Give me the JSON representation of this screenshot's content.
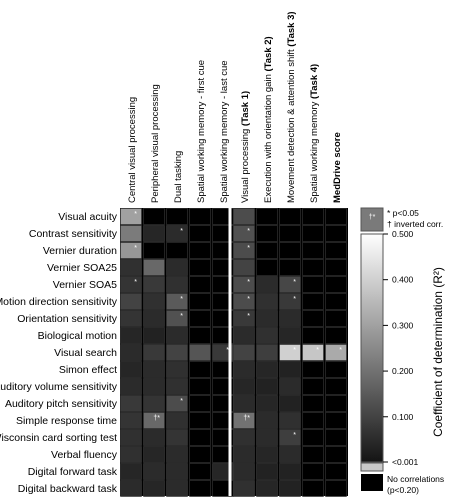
{
  "chart_data": {
    "type": "heatmap",
    "columns": [
      {
        "label": "Central visual processing",
        "bold_part": ""
      },
      {
        "label": "Peripheral visual processing",
        "bold_part": ""
      },
      {
        "label": "Dual tasking",
        "bold_part": ""
      },
      {
        "label": "Spatial working memory - first cue",
        "bold_part": ""
      },
      {
        "label": "Spatial working memory - last cue",
        "bold_part": ""
      },
      {
        "label": "Visual processing ",
        "bold_part": "(Task 1)"
      },
      {
        "label": "Execution with orientation gain ",
        "bold_part": "(Task 2)"
      },
      {
        "label": "Movement detection & attention shift ",
        "bold_part": "(Task 3)"
      },
      {
        "label": "Spatial working memory ",
        "bold_part": "(Task 4)"
      },
      {
        "label": "",
        "bold_part": "MedDrive score"
      }
    ],
    "rows": [
      "Visual acuity",
      "Contrast sensitivity",
      "Vernier duration",
      "Vernier SOA25",
      "Vernier SOA5",
      "Motion direction sensitivity",
      "Orientation sensitivity",
      "Biological motion",
      "Visual search",
      "Simon effect",
      "Auditory volume sensitivity",
      "Auditory pitch sensitivity",
      "Simple response time",
      "Wisconsin card sorting test",
      "Verbal fluency",
      "Digital forward task",
      "Digital backward task"
    ],
    "values": [
      [
        0.3,
        0,
        0,
        0,
        0,
        0.12,
        0,
        0,
        0,
        0
      ],
      [
        0.22,
        0.04,
        0.05,
        0,
        0,
        0.13,
        0,
        0,
        0,
        0
      ],
      [
        0.28,
        0,
        0,
        0,
        0,
        0.12,
        0,
        0,
        0,
        0
      ],
      [
        0.06,
        0.18,
        0.05,
        0,
        0,
        0.1,
        0,
        0,
        0,
        0
      ],
      [
        0.07,
        0.08,
        0.06,
        0,
        0,
        0.12,
        0.05,
        0.11,
        0,
        0
      ],
      [
        0.1,
        0.06,
        0.15,
        0,
        0,
        0.12,
        0.06,
        0.08,
        0,
        0
      ],
      [
        0.07,
        0.05,
        0.13,
        0,
        0,
        0.08,
        0.05,
        0.05,
        0,
        0
      ],
      [
        0.04,
        0.03,
        0.05,
        0,
        0,
        0.05,
        0.06,
        0.04,
        0,
        0
      ],
      [
        0.05,
        0.08,
        0.1,
        0.14,
        0.08,
        0.1,
        0.09,
        0.4,
        0.38,
        0.32
      ],
      [
        0.04,
        0.05,
        0.06,
        0,
        0,
        0.05,
        0.04,
        0.03,
        0,
        0
      ],
      [
        0.05,
        0.05,
        0.06,
        0,
        0,
        0.04,
        0.03,
        0.05,
        0,
        0
      ],
      [
        0.08,
        0.07,
        0.12,
        0,
        0,
        0.05,
        0.04,
        0.03,
        0,
        0
      ],
      [
        0.07,
        0.18,
        0.06,
        0,
        0,
        0.2,
        0.05,
        0.06,
        0,
        0
      ],
      [
        0.06,
        0.05,
        0.07,
        0,
        0,
        0.06,
        0.05,
        0.09,
        0,
        0
      ],
      [
        0.06,
        0.04,
        0.05,
        0,
        0,
        0.05,
        0.04,
        0.05,
        0,
        0
      ],
      [
        0.04,
        0.05,
        0.05,
        0,
        0.04,
        0.05,
        0.03,
        0.03,
        0,
        0
      ],
      [
        0.05,
        0.04,
        0.05,
        0,
        0,
        0.06,
        0.04,
        0.03,
        0,
        0
      ]
    ],
    "markers": [
      {
        "row": 0,
        "col": 0,
        "text": "*"
      },
      {
        "row": 1,
        "col": 2,
        "text": "*"
      },
      {
        "row": 1,
        "col": 5,
        "text": "*"
      },
      {
        "row": 2,
        "col": 0,
        "text": "*"
      },
      {
        "row": 2,
        "col": 5,
        "text": "*"
      },
      {
        "row": 4,
        "col": 0,
        "text": "*"
      },
      {
        "row": 4,
        "col": 5,
        "text": "*"
      },
      {
        "row": 4,
        "col": 7,
        "text": "*"
      },
      {
        "row": 5,
        "col": 2,
        "text": "*"
      },
      {
        "row": 5,
        "col": 5,
        "text": "*"
      },
      {
        "row": 5,
        "col": 7,
        "text": "*"
      },
      {
        "row": 6,
        "col": 2,
        "text": "*"
      },
      {
        "row": 6,
        "col": 5,
        "text": "*"
      },
      {
        "row": 8,
        "col": 4,
        "text": "*"
      },
      {
        "row": 8,
        "col": 7,
        "text": "*"
      },
      {
        "row": 8,
        "col": 8,
        "text": "*"
      },
      {
        "row": 8,
        "col": 9,
        "text": "*"
      },
      {
        "row": 11,
        "col": 2,
        "text": "*"
      },
      {
        "row": 12,
        "col": 1,
        "text": "†*"
      },
      {
        "row": 12,
        "col": 5,
        "text": "†*"
      },
      {
        "row": 13,
        "col": 7,
        "text": "*"
      }
    ],
    "colorbar": {
      "title": "Coefficient of determination (R²)",
      "ticks": [
        {
          "value": 0.5,
          "label": "0.500"
        },
        {
          "value": 0.4,
          "label": "0.400"
        },
        {
          "value": 0.3,
          "label": "0.300"
        },
        {
          "value": 0.2,
          "label": "0.200"
        },
        {
          "value": 0.1,
          "label": "0.100"
        },
        {
          "value": 0.001,
          "label": "<0.001"
        }
      ],
      "range": [
        0.001,
        0.5
      ],
      "legend_sample_marker": "†*",
      "legend_sig_text": "* p<0.05",
      "legend_inverted_text": "† inverted corr.",
      "no_corr_text": "No correlations",
      "no_corr_sub": "(p<0.20)"
    },
    "colors": {
      "no_correlation": "#000000",
      "grid": "#ffffff",
      "border": "#888888"
    }
  }
}
